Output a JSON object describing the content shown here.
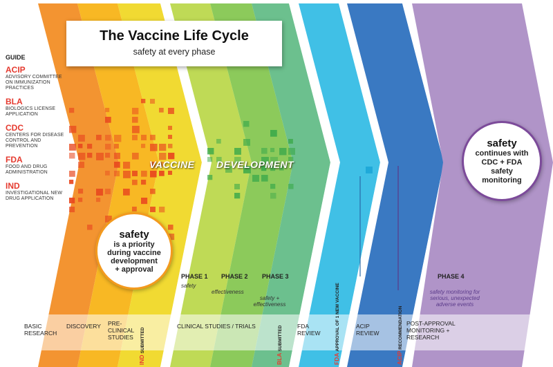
{
  "title": {
    "main": "The Vaccine Life Cycle",
    "sub": "safety at every phase"
  },
  "guide": {
    "heading": "GUIDE",
    "items": [
      {
        "abbr": "ACIP",
        "definition": "ADVISORY COMMITTEE ON IMMUNIZATION PRACTICES"
      },
      {
        "abbr": "BLA",
        "definition": "BIOLOGICS LICENSE APPLICATION"
      },
      {
        "abbr": "CDC",
        "definition": "CENTERS FOR DISEASE CONTROL AND PREVENTION"
      },
      {
        "abbr": "FDA",
        "definition": "FOOD AND DRUG ADMINISTRATION"
      },
      {
        "abbr": "IND",
        "definition": "INVESTIGATIONAL NEW DRUG APPLICATION"
      }
    ]
  },
  "banner": {
    "word1": "VACCINE",
    "word2": "DEVELOPMENT"
  },
  "safety_priority": {
    "big": "safety",
    "line1": "is a priority",
    "line2": "during vaccine",
    "line3": "development",
    "line4": "+ approval"
  },
  "safety_continues": {
    "big": "safety",
    "line1": "continues with",
    "line2": "CDC + FDA",
    "line3": "safety",
    "line4": "monitoring"
  },
  "phases": {
    "p1": {
      "label": "PHASE 1",
      "note": "safety"
    },
    "p2": {
      "label": "PHASE 2",
      "note": "effectiveness"
    },
    "p3": {
      "label": "PHASE 3",
      "note_line1": "safety +",
      "note_line2": "effectiveness"
    },
    "p4": {
      "label": "PHASE 4",
      "note_line1": "safety monitoring for",
      "note_line2": "serious, unexpected",
      "note_line3": "adverse events"
    }
  },
  "stages": {
    "basic_research": {
      "line1": "BASIC",
      "line2": "RESEARCH"
    },
    "discovery": "DISCOVERY",
    "preclinical": {
      "line1": "PRE-",
      "line2": "CLINICAL",
      "line3": "STUDIES"
    },
    "clinical": "CLINICAL STUDIES / TRIALS",
    "fda_review": {
      "line1": "FDA",
      "line2": "REVIEW"
    },
    "acip_review": {
      "line1": "ACIP",
      "line2": "REVIEW"
    },
    "post_approval": {
      "line1": "POST-APPROVAL",
      "line2": "MONITORING +",
      "line3": "RESEARCH"
    }
  },
  "milestones": {
    "ind": {
      "abbr": "IND",
      "text": "SUBMITTED"
    },
    "bla": {
      "abbr": "BLA",
      "text": "SUBMITTED"
    },
    "fda": {
      "abbr": "FDA",
      "text": "APPROVAL OF 1 NEW VACCINE"
    },
    "acip": {
      "abbr": "ACIP",
      "text": "RECOMMENDATION"
    }
  },
  "colors": {
    "basic_research": "#f39431",
    "discovery": "#f8b824",
    "preclinical": "#f1da32",
    "phase1": "#bfda56",
    "phase2": "#8cca5b",
    "phase3": "#6cc08e",
    "fda_review": "#40c0e6",
    "acip_review": "#3a79c2",
    "post_approval": "#b094c8",
    "accent_red": "#e53a2f",
    "square_red": "#e8481f",
    "square_green": "#3aa84a"
  }
}
